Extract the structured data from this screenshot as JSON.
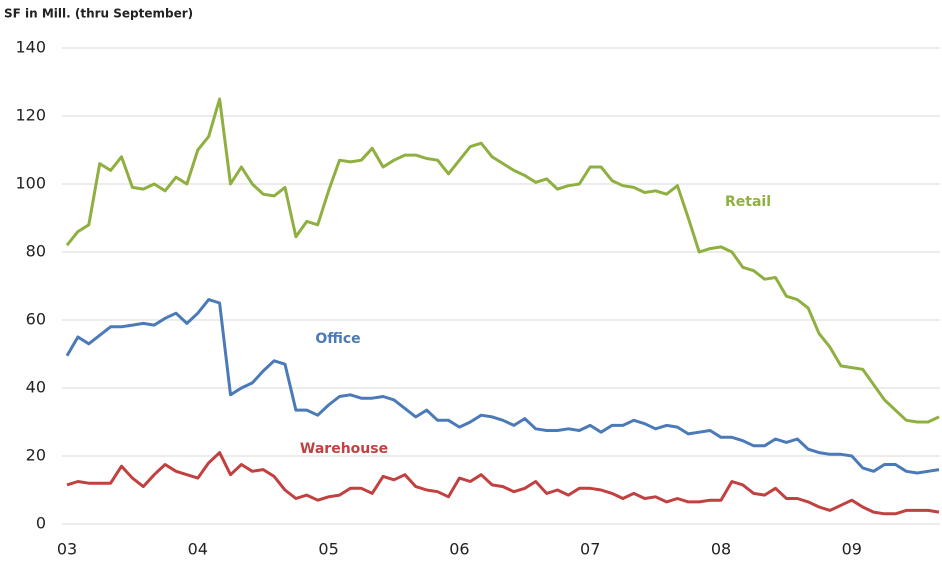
{
  "chart_data": {
    "type": "line",
    "title": "SF in Mill. (thru September)",
    "categories": [
      "03",
      null,
      null,
      null,
      null,
      null,
      null,
      null,
      null,
      null,
      null,
      null,
      "04",
      null,
      null,
      null,
      null,
      null,
      null,
      null,
      null,
      null,
      null,
      null,
      "05",
      null,
      null,
      null,
      null,
      null,
      null,
      null,
      null,
      null,
      null,
      null,
      "06",
      null,
      null,
      null,
      null,
      null,
      null,
      null,
      null,
      null,
      null,
      null,
      "07",
      null,
      null,
      null,
      null,
      null,
      null,
      null,
      null,
      null,
      null,
      null,
      "08",
      null,
      null,
      null,
      null,
      null,
      null,
      null,
      null,
      null,
      null,
      null,
      "09",
      null,
      null,
      null,
      null,
      null,
      null,
      null,
      null
    ],
    "series": [
      {
        "name": "Retail",
        "color": "#8fb040",
        "values": [
          82,
          86,
          88,
          106,
          104,
          108,
          99,
          98.5,
          100,
          98,
          102,
          100,
          110,
          114,
          125,
          100,
          105,
          100,
          97,
          96.5,
          99,
          84.5,
          89,
          88,
          98,
          107,
          106.5,
          107,
          110.5,
          105,
          107,
          108.5,
          108.5,
          107.5,
          107,
          103,
          107,
          111,
          112,
          108,
          106,
          104,
          102.5,
          100.5,
          101.5,
          98.5,
          99.5,
          100,
          105,
          105,
          101,
          99.5,
          99,
          97.5,
          98,
          97,
          99.5,
          90,
          80,
          81,
          81.5,
          80,
          75.5,
          74.5,
          72,
          72.5,
          67,
          66,
          63.5,
          56,
          52,
          46.5,
          46,
          45.5,
          41,
          36.5,
          33.5,
          30.5,
          30,
          30,
          31.5
        ]
      },
      {
        "name": "Office",
        "color": "#4a7ab8",
        "values": [
          49.5,
          55,
          53,
          55.5,
          58,
          58,
          58.5,
          59,
          58.5,
          60.5,
          62,
          59,
          62,
          66,
          65,
          38,
          40,
          41.5,
          45,
          48,
          47,
          33.5,
          33.5,
          32,
          35,
          37.5,
          38,
          37,
          37,
          37.5,
          36.5,
          34,
          31.5,
          33.5,
          30.5,
          30.5,
          28.5,
          30,
          32,
          31.5,
          30.5,
          29,
          31,
          28,
          27.5,
          27.5,
          28,
          27.5,
          29,
          27,
          29,
          29,
          30.5,
          29.5,
          28,
          29,
          28.5,
          26.5,
          27,
          27.5,
          25.5,
          25.5,
          24.5,
          23,
          23,
          25,
          24,
          25,
          22,
          21,
          20.5,
          20.5,
          20,
          16.5,
          15.5,
          17.5,
          17.5,
          15.5,
          15,
          15.5,
          16
        ]
      },
      {
        "name": "Warehouse",
        "color": "#c0413f",
        "values": [
          11.5,
          12.5,
          12,
          12,
          12,
          17,
          13.5,
          11,
          14.5,
          17.5,
          15.5,
          14.5,
          13.5,
          18,
          21,
          14.5,
          17.5,
          15.5,
          16,
          14,
          10,
          7.5,
          8.5,
          7,
          8,
          8.5,
          10.5,
          10.5,
          9,
          14,
          13,
          14.5,
          11,
          10,
          9.5,
          8,
          13.5,
          12.5,
          14.5,
          11.5,
          11,
          9.5,
          10.5,
          12.5,
          9,
          10,
          8.5,
          10.5,
          10.5,
          10,
          9,
          7.5,
          9,
          7.5,
          8,
          6.5,
          7.5,
          6.5,
          6.5,
          7,
          7,
          12.5,
          11.5,
          9,
          8.5,
          10.5,
          7.5,
          7.5,
          6.5,
          5,
          4,
          5.5,
          7,
          5,
          3.5,
          3,
          3,
          4,
          4,
          4,
          3.5
        ]
      }
    ],
    "ylim": [
      0,
      140
    ],
    "yticks": [
      0,
      20,
      40,
      60,
      80,
      100,
      120,
      140
    ],
    "grid": true
  }
}
